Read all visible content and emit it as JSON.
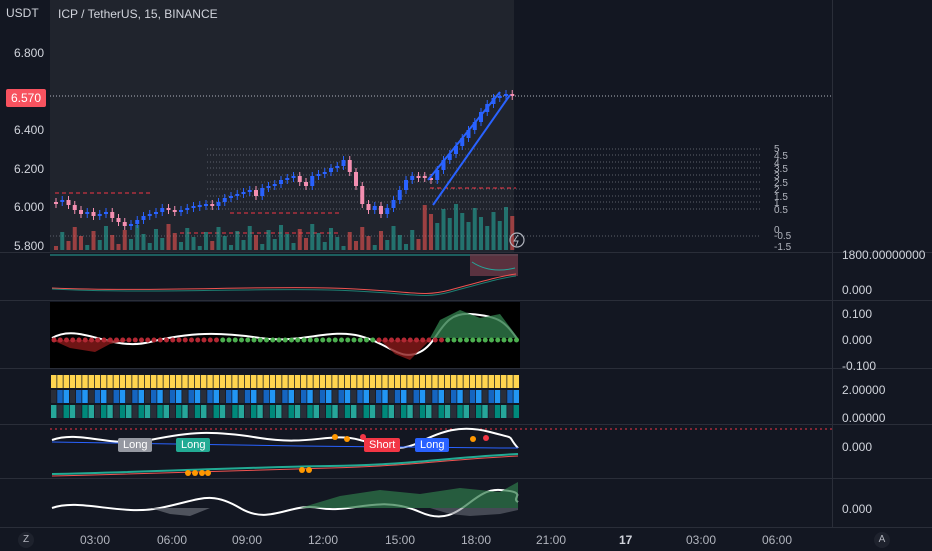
{
  "header": {
    "currency": "USDT",
    "symbol_line": "ICP / TetherUS, 15, BINANCE"
  },
  "price_axis": {
    "labels": [
      "6.800",
      "6.400",
      "6.200",
      "6.000",
      "5.800"
    ],
    "current_price": "6.570",
    "current_price_color": "#f7525f"
  },
  "fib_levels": [
    "5",
    "4.5",
    "4",
    "3.5",
    "3",
    "2.5",
    "2",
    "1.5",
    "1",
    "0.5",
    "0",
    "-0.5",
    "-1.5"
  ],
  "indicators": {
    "volume_axis": "1800.00000000",
    "macd_axis": "0.000",
    "osc_axis": [
      "0.100",
      "0.000",
      "-0.100"
    ],
    "trend_axis": [
      "2.00000",
      "0.00000"
    ],
    "signal_axis": "0.000",
    "momentum_axis": "0.000"
  },
  "signals": [
    {
      "label": "Long",
      "color": "#9598a1"
    },
    {
      "label": "Long",
      "color": "#22ab94"
    },
    {
      "label": "Short",
      "color": "#f23645"
    },
    {
      "label": "Long",
      "color": "#2962ff"
    }
  ],
  "time_axis": {
    "labels": [
      "03:00",
      "06:00",
      "09:00",
      "12:00",
      "15:00",
      "18:00",
      "21:00",
      "17",
      "03:00",
      "06:00"
    ]
  },
  "corner_buttons": {
    "left": "Z",
    "right": "A"
  },
  "colors": {
    "bull": "#2962ff",
    "bear": "#f48fb1",
    "vol_up": "#26a69a",
    "vol_down": "#ef5350",
    "background": "#131722"
  }
}
